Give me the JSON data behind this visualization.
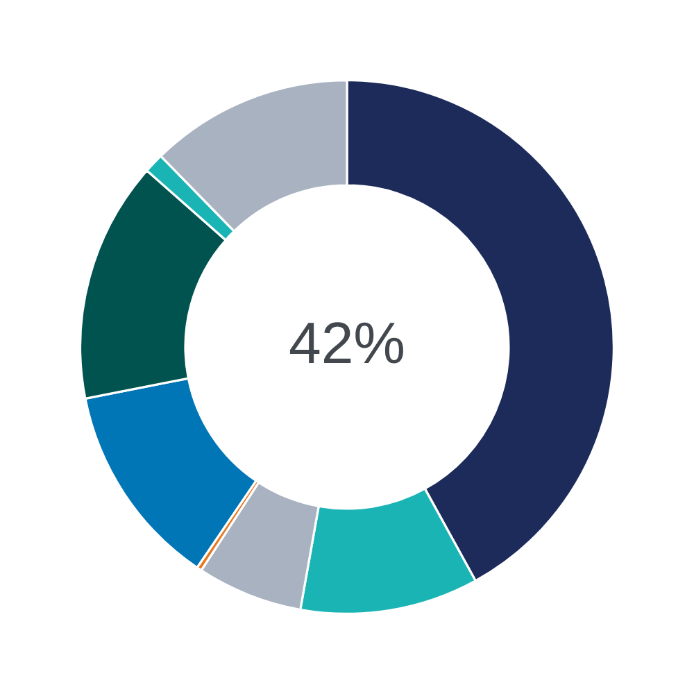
{
  "chart_data": {
    "type": "donut",
    "categories": [
      null,
      null,
      null,
      null,
      null,
      null,
      null,
      null
    ],
    "values": [
      42,
      10.8,
      6.4,
      0.3,
      12.4,
      14.6,
      1.2,
      12.3
    ],
    "colors": [
      "#1c2b5a",
      "#1bb4b4",
      "#a9b2c1",
      "#e8771e",
      "#0076b6",
      "#00534f",
      "#1bb4b4",
      "#a9b2c1"
    ],
    "annotations": [
      "42%"
    ]
  }
}
